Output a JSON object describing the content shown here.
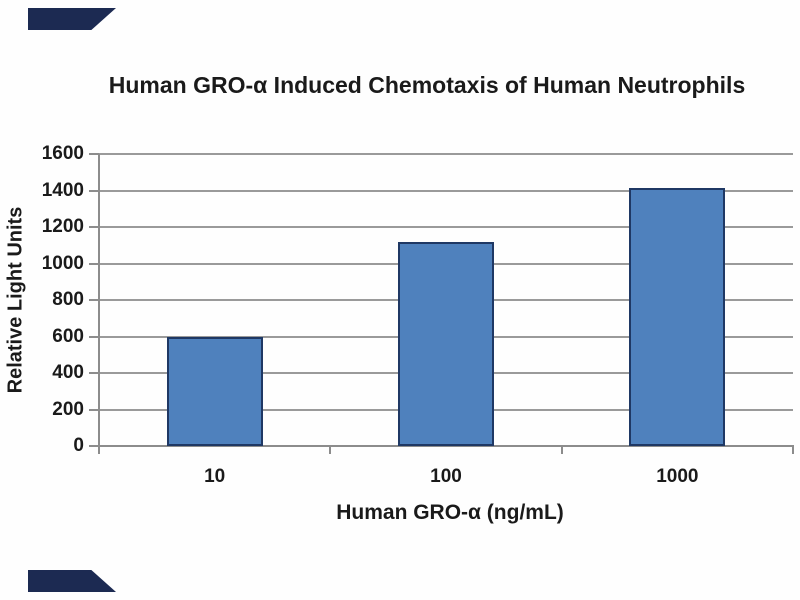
{
  "image": {
    "background": "#fefefe",
    "watermark_corner_color": "#1c2a52"
  },
  "chart_data": {
    "type": "bar",
    "title": "Human GRO-α Induced Chemotaxis of Human Neutrophils",
    "xlabel": "Human GRO-α (ng/mL)",
    "ylabel": "Relative Light Units",
    "categories": [
      "10",
      "100",
      "1000"
    ],
    "values": [
      600,
      1120,
      1415
    ],
    "ylim": [
      0,
      1600
    ],
    "yticks": [
      0,
      200,
      400,
      600,
      800,
      1000,
      1200,
      1400,
      1600
    ],
    "grid": "horizontal",
    "legend": "none",
    "bar_fill": "#4F81BD",
    "bar_border": "#1F3864",
    "gridline_color": "#9a9a9a",
    "axis_color": "#8c8c8c",
    "text_color": "#1a1a1a"
  }
}
